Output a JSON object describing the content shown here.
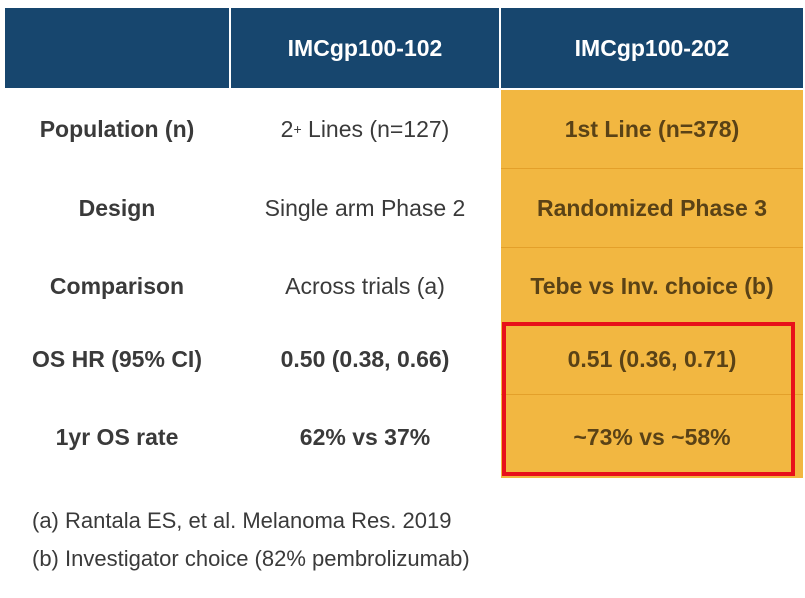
{
  "table": {
    "headers": [
      "",
      "IMCgp100-102",
      "IMCgp100-202"
    ],
    "rows": [
      {
        "label": "Population (n)",
        "col1_base": "2",
        "col1_sup": "+",
        "col1_rest": " Lines (n=127)",
        "col2": "1st Line (n=378)"
      },
      {
        "label": "Design",
        "col1": "Single arm Phase 2",
        "col2": "Randomized Phase 3"
      },
      {
        "label": "Comparison",
        "col1": "Across trials (a)",
        "col2": "Tebe vs Inv. choice (b)"
      },
      {
        "label": "OS HR (95% CI)",
        "col1": "0.50 (0.38, 0.66)",
        "col2": "0.51 (0.36, 0.71)"
      },
      {
        "label": "1yr OS rate",
        "col1": "62% vs 37%",
        "col2": "~73% vs ~58%"
      }
    ]
  },
  "footnotes": [
    "(a) Rantala ES, et al. Melanoma Res. 2019",
    "(b) Investigator choice (82% pembrolizumab)"
  ],
  "colors": {
    "header_bg": "#17466e",
    "highlight_bg": "#f2b741",
    "emphasis_border": "#e8101a"
  }
}
